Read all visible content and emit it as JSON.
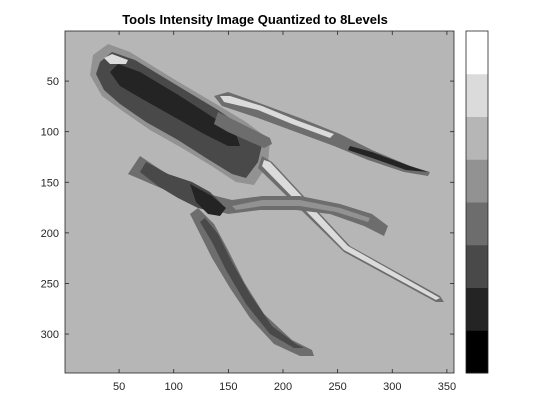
{
  "chart_data": {
    "type": "heatmap",
    "title": "Tools Intensity Image Quantized to 8Levels",
    "xlabel": "",
    "ylabel": "",
    "xlim": [
      0.5,
      356.5
    ],
    "ylim": [
      0.5,
      338.5
    ],
    "y_reversed": true,
    "x_ticks": [
      50,
      100,
      150,
      200,
      250,
      300,
      350
    ],
    "y_ticks": [
      50,
      100,
      150,
      200,
      250,
      300
    ],
    "grid": false,
    "colorbar": {
      "location": "right",
      "levels": 8,
      "colors": [
        "#000000",
        "#242424",
        "#494949",
        "#6d6d6d",
        "#929292",
        "#b6b6b6",
        "#dbdbdb",
        "#ffffff"
      ],
      "tick_labels": []
    },
    "background_level_color": "#b6b6b6",
    "image_content": "grayscale photo of a screwdriver, a small screwdriver and a pair of pliers"
  }
}
